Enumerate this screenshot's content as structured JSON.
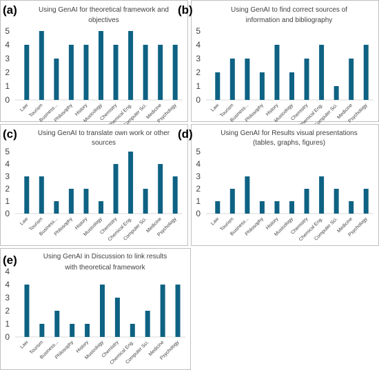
{
  "chart_data": [
    {
      "type": "bar",
      "panel": "(a)",
      "title": [
        "Using GenAI for theoretical framework and",
        "objectives"
      ],
      "categories": [
        "Law",
        "Tourism",
        "Business...",
        "Philosophy",
        "History",
        "Musicology",
        "Chemistry",
        "Chemical Eng.",
        "Computer Sci.",
        "Medicine",
        "Psychology"
      ],
      "values": [
        4,
        5,
        3,
        4,
        4,
        5,
        4,
        5,
        4,
        4,
        4
      ],
      "ylim": [
        0,
        5
      ],
      "yticks": [
        "0",
        "1",
        "2",
        "3",
        "4",
        "5"
      ],
      "color": "#0e6283",
      "grid": false
    },
    {
      "type": "bar",
      "panel": "(b)",
      "title": [
        "Using GenAI to find correct sources of",
        "information and bibliography"
      ],
      "categories": [
        "Law",
        "Tourism",
        "Business...",
        "Philosophy",
        "History",
        "Musicology",
        "Chemistry",
        "Chemical Eng.",
        "Computer Sci.",
        "Medicine",
        "Psychology"
      ],
      "values": [
        2,
        3,
        3,
        2,
        4,
        2,
        3,
        4,
        1,
        3,
        4
      ],
      "ylim": [
        0,
        5
      ],
      "yticks": [
        "0",
        "1",
        "2",
        "3",
        "4",
        "5"
      ],
      "color": "#0e6283",
      "grid": false
    },
    {
      "type": "bar",
      "panel": "(c)",
      "title": [
        "Using GenAI to translate own work or other",
        "sources"
      ],
      "categories": [
        "Law",
        "Tourism",
        "Business...",
        "Philosophy",
        "History",
        "Musicology",
        "Chemistry",
        "Chemical Eng.",
        "Computer Sci.",
        "Medicine",
        "Psychology"
      ],
      "values": [
        3,
        3,
        1,
        2,
        2,
        1,
        4,
        5,
        2,
        4,
        3
      ],
      "ylim": [
        0,
        5
      ],
      "yticks": [
        "0",
        "1",
        "2",
        "3",
        "4",
        "5"
      ],
      "color": "#0e6283",
      "grid": false
    },
    {
      "type": "bar",
      "panel": "(d)",
      "title": [
        "Using GenAI for Results visual presentations",
        "(tables, graphs, figures)"
      ],
      "categories": [
        "Law",
        "Tourism",
        "Business...",
        "Philosophy",
        "History",
        "Musicology",
        "Chemistry",
        "Chemical Eng.",
        "Computer Sci.",
        "Medicine",
        "Psychology"
      ],
      "values": [
        1,
        2,
        3,
        1,
        1,
        1,
        2,
        3,
        2,
        1,
        2
      ],
      "ylim": [
        0,
        5
      ],
      "yticks": [
        "0",
        "1",
        "2",
        "3",
        "4",
        "5"
      ],
      "color": "#0e6283",
      "grid": false
    },
    {
      "type": "bar",
      "panel": "(e)",
      "title": [
        "Using GenAI in Discussion to link results",
        "with theoretical framework"
      ],
      "categories": [
        "Law",
        "Tourism",
        "Business...",
        "Philosophy",
        "History",
        "Musicology",
        "Chemistry",
        "Chemical Eng.",
        "Computer Sci.",
        "Medicine",
        "Psychology"
      ],
      "values": [
        4,
        1,
        2,
        1,
        1,
        4,
        3,
        1,
        2,
        4,
        4
      ],
      "ylim": [
        0,
        4
      ],
      "yticks": [
        "0",
        "1",
        "2",
        "3",
        "4",
        "4"
      ],
      "color": "#0e6283",
      "grid": false
    }
  ]
}
